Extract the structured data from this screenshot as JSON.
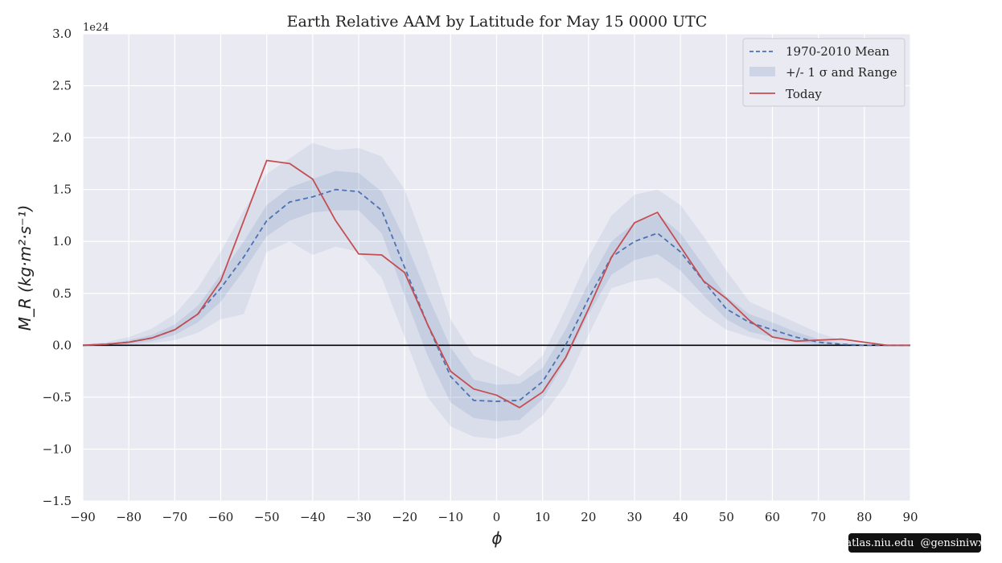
{
  "chart_data": {
    "type": "line",
    "title": "Earth Relative AAM by Latitude for May 15 0000 UTC",
    "xlabel": "ϕ",
    "ylabel": "M_R (kg·m²·s⁻¹)",
    "y_offset_label": "1e24",
    "xlim": [
      -90,
      90
    ],
    "ylim": [
      -1.5,
      3.0
    ],
    "x_ticks": [
      -90,
      -80,
      -70,
      -60,
      -50,
      -40,
      -30,
      -20,
      -10,
      0,
      10,
      20,
      30,
      40,
      50,
      60,
      70,
      80,
      90
    ],
    "x_tick_labels": [
      "−90",
      "−80",
      "−70",
      "−60",
      "−50",
      "−40",
      "−30",
      "−20",
      "−10",
      "0",
      "10",
      "20",
      "30",
      "40",
      "50",
      "60",
      "70",
      "80",
      "90"
    ],
    "y_ticks": [
      -1.5,
      -1.0,
      -0.5,
      0.0,
      0.5,
      1.0,
      1.5,
      2.0,
      2.5,
      3.0
    ],
    "y_tick_labels": [
      "−1.5",
      "−1.0",
      "−0.5",
      "0.0",
      "0.5",
      "1.0",
      "1.5",
      "2.0",
      "2.5",
      "3.0"
    ],
    "grid": true,
    "legend_position": "top-right",
    "legend": [
      "1970-2010 Mean",
      "+/- 1 σ and Range",
      "Today"
    ],
    "x": [
      -90,
      -85,
      -80,
      -75,
      -70,
      -65,
      -60,
      -55,
      -50,
      -45,
      -40,
      -35,
      -30,
      -25,
      -20,
      -15,
      -10,
      -5,
      0,
      5,
      10,
      15,
      20,
      25,
      30,
      35,
      40,
      45,
      50,
      55,
      60,
      65,
      70,
      75,
      80,
      85,
      90
    ],
    "series": [
      {
        "name": "1970-2010 Mean",
        "style": "dashed",
        "color": "#4c72b0",
        "values": [
          0.0,
          0.01,
          0.03,
          0.07,
          0.15,
          0.3,
          0.55,
          0.85,
          1.2,
          1.38,
          1.43,
          1.5,
          1.48,
          1.3,
          0.75,
          0.2,
          -0.3,
          -0.53,
          -0.54,
          -0.53,
          -0.35,
          0.0,
          0.45,
          0.85,
          1.0,
          1.08,
          0.9,
          0.62,
          0.35,
          0.22,
          0.15,
          0.08,
          0.03,
          0.01,
          0.0,
          0.0,
          0.0
        ]
      },
      {
        "name": "Today",
        "style": "solid",
        "color": "#c44e52",
        "values": [
          0.0,
          0.01,
          0.03,
          0.07,
          0.15,
          0.3,
          0.62,
          1.2,
          1.78,
          1.75,
          1.6,
          1.2,
          0.88,
          0.87,
          0.7,
          0.2,
          -0.25,
          -0.42,
          -0.48,
          -0.6,
          -0.45,
          -0.12,
          0.35,
          0.85,
          1.18,
          1.28,
          0.95,
          0.62,
          0.45,
          0.24,
          0.08,
          0.04,
          0.05,
          0.06,
          0.03,
          0.0,
          0.0
        ]
      }
    ],
    "bands": [
      {
        "label": "+/- 1 σ",
        "lower": [
          0.0,
          0.0,
          0.01,
          0.04,
          0.1,
          0.22,
          0.42,
          0.72,
          1.05,
          1.2,
          1.28,
          1.3,
          1.3,
          1.08,
          0.48,
          -0.1,
          -0.55,
          -0.7,
          -0.73,
          -0.72,
          -0.52,
          -0.15,
          0.3,
          0.68,
          0.82,
          0.88,
          0.72,
          0.48,
          0.25,
          0.13,
          0.08,
          0.03,
          0.01,
          0.0,
          0.0,
          0.0,
          0.0
        ],
        "upper": [
          0.0,
          0.01,
          0.05,
          0.1,
          0.2,
          0.38,
          0.68,
          1.0,
          1.35,
          1.52,
          1.6,
          1.68,
          1.66,
          1.48,
          1.02,
          0.48,
          -0.02,
          -0.33,
          -0.38,
          -0.37,
          -0.22,
          0.15,
          0.6,
          1.0,
          1.18,
          1.26,
          1.08,
          0.77,
          0.47,
          0.3,
          0.22,
          0.13,
          0.06,
          0.02,
          0.0,
          0.0,
          0.0
        ]
      },
      {
        "label": "Range",
        "lower": [
          0.0,
          -0.01,
          0.0,
          0.02,
          0.05,
          0.12,
          0.25,
          0.3,
          0.9,
          1.0,
          0.87,
          0.95,
          0.9,
          0.65,
          0.08,
          -0.5,
          -0.78,
          -0.88,
          -0.9,
          -0.85,
          -0.68,
          -0.38,
          0.1,
          0.55,
          0.62,
          0.65,
          0.5,
          0.3,
          0.15,
          0.08,
          0.03,
          0.01,
          0.0,
          0.0,
          0.0,
          0.0,
          0.0
        ],
        "upper": [
          0.01,
          0.03,
          0.08,
          0.16,
          0.3,
          0.55,
          0.9,
          1.3,
          1.65,
          1.8,
          1.95,
          1.88,
          1.9,
          1.82,
          1.5,
          0.9,
          0.25,
          -0.1,
          -0.2,
          -0.3,
          -0.1,
          0.35,
          0.85,
          1.25,
          1.45,
          1.5,
          1.35,
          1.05,
          0.72,
          0.42,
          0.32,
          0.22,
          0.12,
          0.05,
          0.01,
          0.0,
          0.0
        ]
      }
    ],
    "colors": {
      "background": "#eaeaf2",
      "grid": "#ffffff",
      "mean": "#4c72b0",
      "band": "#4c72b0",
      "today": "#c44e52",
      "zero_line": "#000000"
    }
  },
  "credit": {
    "site": "atlas.niu.edu",
    "handle": "@gensiniwx"
  }
}
